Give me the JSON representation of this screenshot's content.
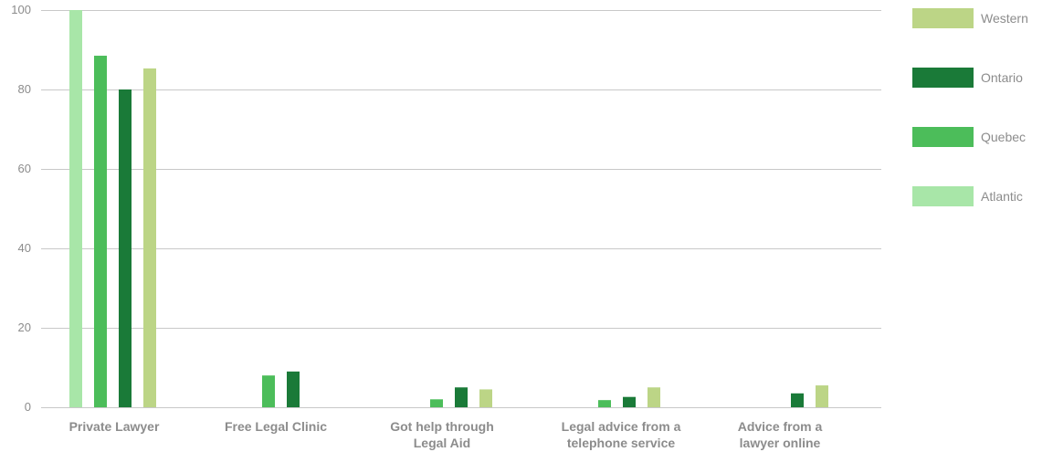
{
  "chart_data": {
    "type": "bar",
    "categories": [
      [
        "Private Lawyer"
      ],
      [
        "Free Legal Clinic"
      ],
      [
        "Got help through",
        "Legal Aid"
      ],
      [
        "Legal advice from a",
        "telephone service"
      ],
      [
        "Advice from a",
        "lawyer online"
      ]
    ],
    "series": [
      {
        "name": "Atlantic",
        "color": "#a8e6a8",
        "values": [
          100,
          0,
          0,
          0,
          0
        ]
      },
      {
        "name": "Quebec",
        "color": "#4cbd5a",
        "values": [
          88.5,
          8,
          2,
          1.8,
          0
        ]
      },
      {
        "name": "Ontario",
        "color": "#1a7a38",
        "values": [
          80,
          9,
          5,
          2.6,
          3.5
        ]
      },
      {
        "name": "Western",
        "color": "#bcd586",
        "values": [
          85.3,
          0,
          4.5,
          5,
          5.5
        ]
      }
    ],
    "legend_order": [
      "Western",
      "Ontario",
      "Quebec",
      "Atlantic"
    ],
    "ylim": [
      0,
      100
    ],
    "yticks": [
      0,
      20,
      40,
      60,
      80,
      100
    ],
    "grid": true,
    "legend_position": "right",
    "title": "",
    "xlabel": "",
    "ylabel": ""
  }
}
